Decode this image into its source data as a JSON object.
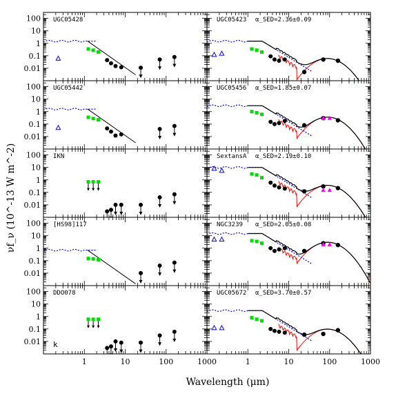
{
  "figure": {
    "ylabel": "νf_ν (10^-13 W m^-2)",
    "xlabel": "Wavelength (μm)"
  },
  "colors": {
    "stellar_model": "#0000ff",
    "uv_points": "#0000ff",
    "nir_points": "#00dd00",
    "mid_far_ir_points": "#000000",
    "sed_model": "#000000",
    "dust_component": "#ff0000",
    "mips_points": "#ff00ff"
  },
  "chart_data": {
    "type": "scatter",
    "xscale": "log",
    "yscale": "log",
    "xlim": [
      0.1,
      1000
    ],
    "ylim": [
      0.001,
      300
    ],
    "x_tick_labels": [
      "1",
      "10",
      "100",
      "1000"
    ],
    "y_tick_labels": [
      "0.01",
      "0.1",
      "1",
      "10",
      "100"
    ],
    "panels": [
      {
        "id": "UGC05428",
        "label": "UGC05428",
        "alpha": "",
        "col": 0,
        "row": 0,
        "sed_fit": false,
        "nir_limits": false,
        "stellar_level": 1.5,
        "uv": [
          [
            0.23,
            0.06
          ]
        ],
        "nir": [
          [
            1.25,
            0.35
          ],
          [
            1.65,
            0.28
          ],
          [
            2.2,
            0.2
          ]
        ],
        "irac": [
          [
            3.6,
            0.045
          ],
          [
            4.5,
            0.025
          ],
          [
            5.8,
            0.015
          ],
          [
            8.0,
            0.012
          ]
        ],
        "ul": [
          [
            24,
            0.011
          ],
          [
            70,
            0.05
          ],
          [
            160,
            0.08
          ]
        ],
        "mips": []
      },
      {
        "id": "UGC05423",
        "label": "UGC05423",
        "alpha": "α_SED=2.36±0.09",
        "col": 1,
        "row": 0,
        "sed_fit": true,
        "nir_limits": false,
        "stellar_level": 1.5,
        "uv": [
          [
            0.15,
            0.12
          ],
          [
            0.23,
            0.15
          ]
        ],
        "nir": [
          [
            1.25,
            0.35
          ],
          [
            1.65,
            0.28
          ],
          [
            2.2,
            0.2
          ]
        ],
        "irac": [
          [
            3.6,
            0.09
          ],
          [
            4.5,
            0.05
          ],
          [
            5.8,
            0.04
          ],
          [
            8.0,
            0.05
          ]
        ],
        "ul": [],
        "det": [
          [
            24,
            0.005
          ],
          [
            70,
            0.05
          ],
          [
            160,
            0.04
          ]
        ],
        "mips": []
      },
      {
        "id": "UGC05442",
        "label": "UGC05442",
        "alpha": "",
        "col": 0,
        "row": 1,
        "sed_fit": false,
        "nir_limits": false,
        "stellar_level": 1.6,
        "uv": [
          [
            0.23,
            0.05
          ]
        ],
        "nir": [
          [
            1.25,
            0.35
          ],
          [
            1.65,
            0.28
          ],
          [
            2.2,
            0.22
          ]
        ],
        "irac": [
          [
            3.6,
            0.045
          ],
          [
            4.5,
            0.025
          ],
          [
            5.8,
            0.012
          ],
          [
            8.0,
            0.015
          ]
        ],
        "ul": [
          [
            70,
            0.04
          ],
          [
            160,
            0.07
          ]
        ],
        "mips": []
      },
      {
        "id": "UGC05456",
        "label": "UGC05456",
        "alpha": "α_SED=1.85±0.07",
        "col": 1,
        "row": 1,
        "sed_fit": true,
        "nir_limits": false,
        "stellar_level": 3.0,
        "uv": [],
        "nir": [
          [
            1.25,
            1.0
          ],
          [
            1.65,
            0.8
          ],
          [
            2.2,
            0.6
          ]
        ],
        "irac": [
          [
            3.6,
            0.15
          ],
          [
            4.5,
            0.1
          ],
          [
            5.8,
            0.12
          ],
          [
            8.0,
            0.18
          ]
        ],
        "ul": [],
        "det": [
          [
            24,
            0.08
          ],
          [
            70,
            0.3
          ],
          [
            160,
            0.2
          ]
        ],
        "mips": [
          [
            70,
            0.3
          ],
          [
            100,
            0.3
          ]
        ]
      },
      {
        "id": "IKN",
        "label": "IKN",
        "alpha": "",
        "col": 0,
        "row": 2,
        "sed_fit": false,
        "nir_limits": true,
        "stellar_level": 0,
        "uv": [],
        "nir": [
          [
            1.25,
            0.7
          ],
          [
            1.65,
            0.7
          ],
          [
            2.2,
            0.7
          ]
        ],
        "irac": [],
        "ul": [
          [
            3.6,
            0.003
          ],
          [
            4.5,
            0.004
          ],
          [
            5.8,
            0.01
          ],
          [
            8.0,
            0.01
          ],
          [
            24,
            0.01
          ],
          [
            70,
            0.04
          ],
          [
            160,
            0.07
          ]
        ],
        "mips": []
      },
      {
        "id": "SextansA",
        "label": "SextansA",
        "alpha": "α_SED=2.19±0.10",
        "col": 1,
        "row": 2,
        "sed_fit": true,
        "nir_limits": false,
        "stellar_level": 10.0,
        "uv": [
          [
            0.15,
            8.0
          ],
          [
            0.23,
            5.5
          ]
        ],
        "nir": [
          [
            1.25,
            3.0
          ],
          [
            1.65,
            2.5
          ],
          [
            2.2,
            1.5
          ]
        ],
        "irac": [
          [
            3.6,
            0.6
          ],
          [
            4.5,
            0.35
          ],
          [
            5.8,
            0.25
          ],
          [
            8.0,
            0.2
          ]
        ],
        "ul": [],
        "det": [
          [
            24,
            0.12
          ],
          [
            70,
            0.3
          ],
          [
            160,
            0.22
          ]
        ],
        "mips": [
          [
            70,
            0.15
          ],
          [
            100,
            0.15
          ]
        ]
      },
      {
        "id": "HS98117",
        "label": "[HS98]117",
        "alpha": "",
        "col": 0,
        "row": 3,
        "sed_fit": false,
        "nir_limits": false,
        "stellar_level": 0.7,
        "uv": [],
        "nir": [
          [
            1.25,
            0.15
          ],
          [
            1.65,
            0.14
          ],
          [
            2.2,
            0.12
          ]
        ],
        "irac": [],
        "ul": [
          [
            24,
            0.01
          ],
          [
            70,
            0.04
          ],
          [
            160,
            0.07
          ]
        ],
        "mips": []
      },
      {
        "id": "NGC3239",
        "label": "NGC3239",
        "alpha": "α_SED=2.05±0.08",
        "col": 1,
        "row": 3,
        "sed_fit": true,
        "nir_limits": false,
        "stellar_level": 15.0,
        "uv": [
          [
            0.15,
            5.0
          ],
          [
            0.23,
            5.0
          ]
        ],
        "nir": [
          [
            1.25,
            4.0
          ],
          [
            1.65,
            3.5
          ],
          [
            2.2,
            2.5
          ]
        ],
        "irac": [
          [
            3.6,
            1.0
          ],
          [
            4.5,
            0.6
          ],
          [
            5.8,
            0.8
          ],
          [
            8.0,
            1.0
          ]
        ],
        "ul": [],
        "det": [
          [
            24,
            0.6
          ],
          [
            70,
            2.5
          ],
          [
            160,
            1.8
          ]
        ],
        "mips": [
          [
            70,
            2.0
          ],
          [
            100,
            2.0
          ]
        ]
      },
      {
        "id": "DDO078",
        "label": "DDO078",
        "alpha": "",
        "col": 0,
        "row": 4,
        "sed_fit": false,
        "nir_limits": true,
        "stellar_level": 0,
        "uv": [],
        "nir": [
          [
            1.25,
            0.6
          ],
          [
            1.65,
            0.6
          ],
          [
            2.2,
            0.6
          ]
        ],
        "irac": [],
        "ul": [
          [
            3.6,
            0.003
          ],
          [
            4.5,
            0.004
          ],
          [
            5.8,
            0.01
          ],
          [
            8.0,
            0.008
          ],
          [
            24,
            0.008
          ],
          [
            70,
            0.03
          ],
          [
            160,
            0.06
          ]
        ],
        "mips": [],
        "corner": "k"
      },
      {
        "id": "UGC05672",
        "label": "UGC05672",
        "alpha": "α_SED=3.70±0.57",
        "col": 1,
        "row": 4,
        "sed_fit": true,
        "nir_limits": false,
        "stellar_level": 3.0,
        "uv": [
          [
            0.15,
            0.12
          ],
          [
            0.23,
            0.12
          ]
        ],
        "nir": [
          [
            1.25,
            0.8
          ],
          [
            1.65,
            0.6
          ],
          [
            2.2,
            0.45
          ]
        ],
        "irac": [
          [
            3.6,
            0.1
          ],
          [
            4.5,
            0.07
          ],
          [
            5.8,
            0.06
          ],
          [
            8.0,
            0.05
          ]
        ],
        "ul": [],
        "det": [
          [
            24,
            0.035
          ],
          [
            70,
            0.04
          ],
          [
            160,
            0.08
          ]
        ],
        "mips": []
      }
    ]
  }
}
